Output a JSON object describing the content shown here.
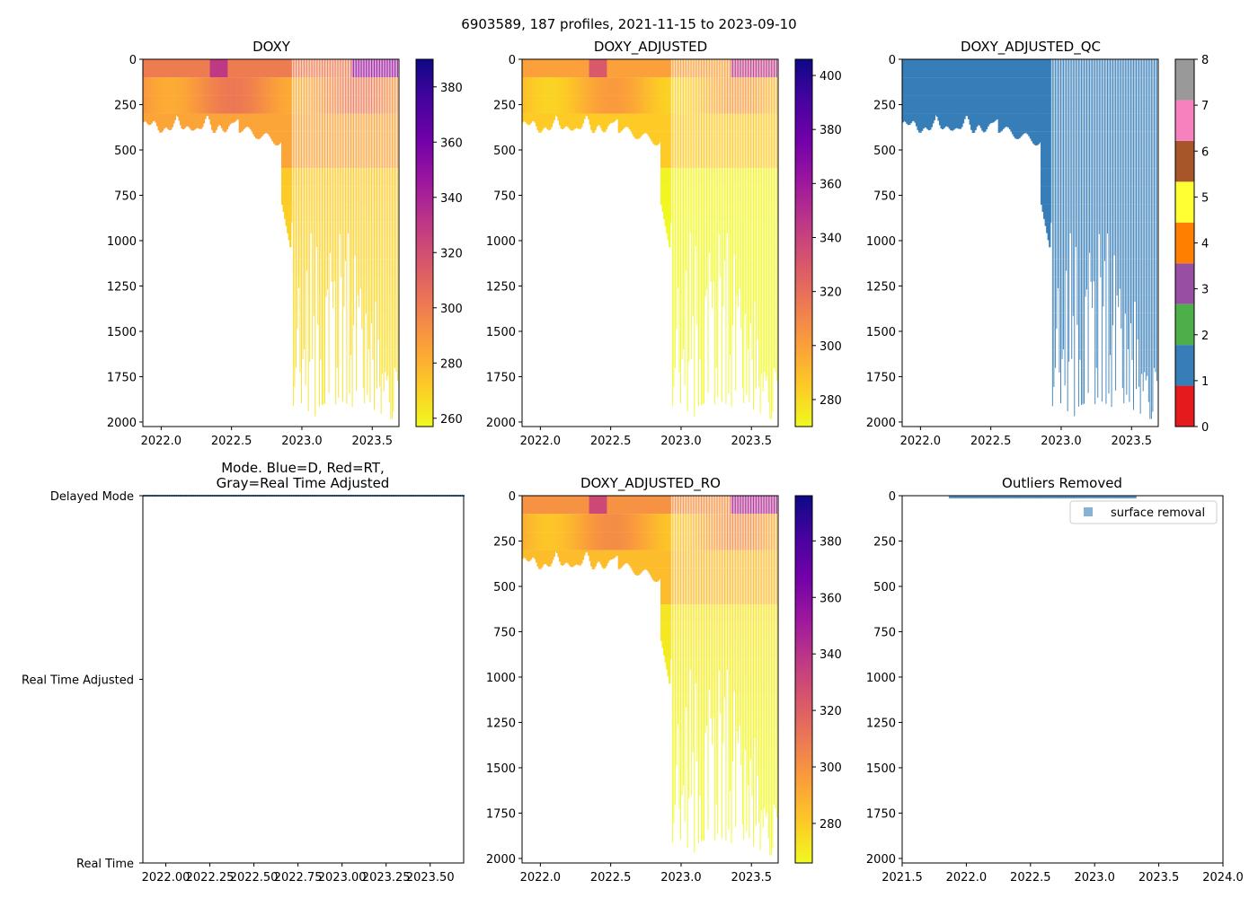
{
  "suptitle": "6903589, 187 profiles, 2021-11-15 to 2023-09-10",
  "panels": {
    "doxy": {
      "title": "DOXY"
    },
    "doxy_adj": {
      "title": "DOXY_ADJUSTED"
    },
    "doxy_qc": {
      "title": "DOXY_ADJUSTED_QC"
    },
    "mode": {
      "title_line1": "Mode. Blue=D, Red=RT,",
      "title_line2": "Gray=Real Time Adjusted"
    },
    "doxy_ro": {
      "title": "DOXY_ADJUSTED_RO"
    },
    "outliers": {
      "title": "Outliers Removed",
      "legend_label": "surface removal"
    }
  },
  "colors": {
    "qc_blue": "#377eb8",
    "plasma": [
      "#f0f921",
      "#fdca26",
      "#fb9f3a",
      "#ed7953",
      "#d8576b",
      "#bd3786",
      "#9c179e",
      "#7201a8",
      "#46039f",
      "#0d0887"
    ]
  },
  "chart_data": [
    {
      "id": "doxy",
      "type": "heatmap",
      "title": "DOXY",
      "x_ticks": [
        "2022.0",
        "2022.5",
        "2023.0",
        "2023.5"
      ],
      "x_tick_values": [
        2022.0,
        2022.5,
        2023.0,
        2023.5
      ],
      "xlim": [
        2021.87,
        2023.69
      ],
      "y_ticks": [
        "0",
        "250",
        "500",
        "750",
        "1000",
        "1250",
        "1500",
        "1750",
        "2000"
      ],
      "ylim": [
        2025,
        0
      ],
      "y_inverted": true,
      "colorbar": {
        "cmap": "plasma",
        "range": [
          257,
          390
        ],
        "ticks": [
          260,
          280,
          300,
          320,
          340,
          360,
          380
        ]
      }
    },
    {
      "id": "doxy_adj",
      "type": "heatmap",
      "title": "DOXY_ADJUSTED",
      "x_ticks": [
        "2022.0",
        "2022.5",
        "2023.0",
        "2023.5"
      ],
      "x_tick_values": [
        2022.0,
        2022.5,
        2023.0,
        2023.5
      ],
      "xlim": [
        2021.87,
        2023.69
      ],
      "y_ticks": [
        "0",
        "250",
        "500",
        "750",
        "1000",
        "1250",
        "1500",
        "1750",
        "2000"
      ],
      "ylim": [
        2025,
        0
      ],
      "y_inverted": true,
      "colorbar": {
        "cmap": "plasma",
        "range": [
          270,
          406
        ],
        "ticks": [
          280,
          300,
          320,
          340,
          360,
          380,
          400
        ]
      }
    },
    {
      "id": "doxy_qc",
      "type": "heatmap",
      "title": "DOXY_ADJUSTED_QC",
      "x_ticks": [
        "2022.0",
        "2022.5",
        "2023.0",
        "2023.5"
      ],
      "x_tick_values": [
        2022.0,
        2022.5,
        2023.0,
        2023.5
      ],
      "xlim": [
        2021.87,
        2023.69
      ],
      "y_ticks": [
        "0",
        "250",
        "500",
        "750",
        "1000",
        "1250",
        "1500",
        "1750",
        "2000"
      ],
      "ylim": [
        2025,
        0
      ],
      "y_inverted": true,
      "qc_value_shown": 1,
      "colorbar": {
        "type": "discrete",
        "range": [
          0,
          8
        ],
        "ticks": [
          0,
          1,
          2,
          3,
          4,
          5,
          6,
          7,
          8
        ],
        "colors": [
          "#e41a1c",
          "#377eb8",
          "#4daf4a",
          "#984ea3",
          "#ff7f00",
          "#ffff33",
          "#a65628",
          "#f781bf",
          "#999999"
        ]
      }
    },
    {
      "id": "mode",
      "type": "scatter",
      "title": "Mode. Blue=D, Red=RT,\nGray=Real Time Adjusted",
      "x_ticks": [
        "2022.00",
        "2022.25",
        "2022.50",
        "2022.75",
        "2023.00",
        "2023.25",
        "2023.50"
      ],
      "x_tick_values": [
        2022.0,
        2022.25,
        2022.5,
        2022.75,
        2023.0,
        2023.25,
        2023.5
      ],
      "xlim": [
        2021.87,
        2023.69
      ],
      "y_categories": [
        "Real Time",
        "Real Time Adjusted",
        "Delayed Mode"
      ],
      "points_category": "Delayed Mode",
      "profile_count": 187,
      "point_color": "#377eb8"
    },
    {
      "id": "doxy_ro",
      "type": "heatmap",
      "title": "DOXY_ADJUSTED_RO",
      "x_ticks": [
        "2022.0",
        "2022.5",
        "2023.0",
        "2023.5"
      ],
      "x_tick_values": [
        2022.0,
        2022.5,
        2023.0,
        2023.5
      ],
      "xlim": [
        2021.87,
        2023.69
      ],
      "y_ticks": [
        "0",
        "250",
        "500",
        "750",
        "1000",
        "1250",
        "1500",
        "1750",
        "2000"
      ],
      "ylim": [
        2025,
        0
      ],
      "y_inverted": true,
      "colorbar": {
        "cmap": "plasma",
        "range": [
          266,
          396
        ],
        "ticks": [
          280,
          300,
          320,
          340,
          360,
          380
        ]
      }
    },
    {
      "id": "outliers",
      "type": "scatter",
      "title": "Outliers Removed",
      "x_ticks": [
        "2021.5",
        "2022.0",
        "2022.5",
        "2023.0",
        "2023.5",
        "2024.0"
      ],
      "x_tick_values": [
        2021.5,
        2022.0,
        2022.5,
        2023.0,
        2023.5,
        2024.0
      ],
      "xlim": [
        2021.5,
        2024.0
      ],
      "y_ticks": [
        "0",
        "250",
        "500",
        "750",
        "1000",
        "1250",
        "1500",
        "1750",
        "2000"
      ],
      "ylim": [
        2025,
        0
      ],
      "y_inverted": true,
      "series": [
        {
          "name": "surface removal",
          "x_range": [
            2021.87,
            2023.33
          ],
          "depth_range": [
            0,
            12
          ],
          "color": "#377eb8"
        }
      ],
      "legend": "top-right"
    }
  ]
}
